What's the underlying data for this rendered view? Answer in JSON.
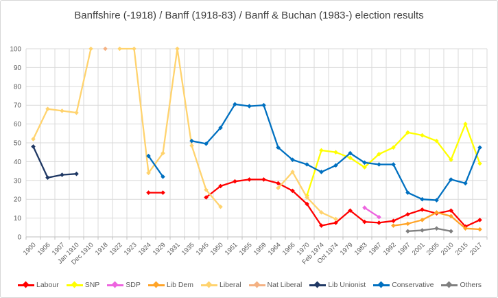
{
  "chart_data": {
    "type": "line",
    "title": "Banffshire (-1918) / Banff (1918-83) / Banff & Buchan (1983-) election results",
    "xlabel": "",
    "ylabel": "",
    "ylim": [
      0,
      100
    ],
    "yticks": [
      0,
      10,
      20,
      30,
      40,
      50,
      60,
      70,
      80,
      90,
      100
    ],
    "grid": true,
    "legend_position": "bottom",
    "xlabel_rotation": 45,
    "grid_color": "#d9d9d9",
    "axis_line_color": "#bfbfbf",
    "axis_text_color": "#595959",
    "title_color": "#404040",
    "categories": [
      "1900",
      "1906",
      "1907",
      "Jan 1910",
      "Dec 1910",
      "1918",
      "1922",
      "1923",
      "1924",
      "1929",
      "1931",
      "1935",
      "1945",
      "1950",
      "1951",
      "1955",
      "1959",
      "1964",
      "1966",
      "1970",
      "Feb 1974",
      "Oct 1974",
      "1979",
      "1983",
      "1987",
      "1992",
      "1997",
      "2001",
      "2005",
      "2010",
      "2015",
      "2017"
    ],
    "series": [
      {
        "name": "Labour",
        "color": "#ff0000",
        "values": [
          null,
          null,
          null,
          null,
          null,
          null,
          null,
          null,
          23.5,
          23.5,
          null,
          null,
          21,
          27,
          29.5,
          30.5,
          30.5,
          28.5,
          24.5,
          17.5,
          6,
          7.5,
          14,
          8,
          7.5,
          8.5,
          12,
          14.5,
          12.5,
          14,
          5.5,
          9
        ]
      },
      {
        "name": "SNP",
        "color": "#ffff00",
        "values": [
          null,
          null,
          null,
          null,
          null,
          null,
          null,
          null,
          null,
          null,
          null,
          null,
          null,
          null,
          null,
          null,
          null,
          null,
          null,
          22,
          46,
          45,
          42,
          37,
          44,
          47.5,
          55.5,
          54,
          51,
          41,
          60,
          39
        ]
      },
      {
        "name": "SDP",
        "color": "#ed64df",
        "values": [
          null,
          null,
          null,
          null,
          null,
          null,
          null,
          null,
          null,
          null,
          null,
          null,
          null,
          null,
          null,
          null,
          null,
          null,
          null,
          null,
          null,
          null,
          null,
          15.5,
          10.5,
          null,
          null,
          null,
          null,
          null,
          null,
          null
        ]
      },
      {
        "name": "Lib Dem",
        "color": "#ffa428",
        "values": [
          null,
          null,
          null,
          null,
          null,
          null,
          null,
          null,
          null,
          null,
          null,
          null,
          null,
          null,
          null,
          null,
          null,
          null,
          null,
          null,
          null,
          null,
          null,
          null,
          null,
          6,
          7,
          9,
          13,
          11,
          4.5,
          4
        ]
      },
      {
        "name": "Liberal",
        "color": "#ffd36e",
        "values": [
          52,
          68,
          67,
          66,
          100,
          null,
          100,
          100,
          34,
          44.5,
          100,
          48.5,
          25,
          16,
          null,
          null,
          null,
          26,
          34.5,
          21,
          13,
          9.5,
          null,
          null,
          null,
          null,
          null,
          null,
          null,
          null,
          null,
          null
        ]
      },
      {
        "name": "Nat Liberal",
        "color": "#f4b183",
        "values": [
          null,
          null,
          null,
          null,
          null,
          100,
          null,
          null,
          null,
          null,
          null,
          null,
          null,
          null,
          null,
          null,
          null,
          null,
          null,
          null,
          null,
          null,
          null,
          null,
          null,
          null,
          null,
          null,
          null,
          null,
          null,
          null
        ]
      },
      {
        "name": "Lib Unionist",
        "color": "#1f3864",
        "values": [
          48,
          31.5,
          33,
          33.5,
          null,
          null,
          null,
          null,
          null,
          null,
          null,
          null,
          null,
          null,
          null,
          null,
          null,
          null,
          null,
          null,
          null,
          null,
          null,
          null,
          null,
          null,
          null,
          null,
          null,
          null,
          null,
          null
        ]
      },
      {
        "name": "Conservative",
        "color": "#0070c0",
        "values": [
          null,
          null,
          null,
          null,
          null,
          null,
          null,
          null,
          43,
          32,
          null,
          51,
          49.5,
          58,
          70.5,
          69.5,
          70,
          47.5,
          41,
          38.5,
          34.5,
          38,
          44.5,
          39.5,
          38.5,
          38.5,
          23.5,
          20,
          19.5,
          30.5,
          28.5,
          47.5
        ]
      },
      {
        "name": "Others",
        "color": "#7f7f7f",
        "values": [
          null,
          null,
          null,
          null,
          null,
          null,
          null,
          null,
          null,
          null,
          null,
          null,
          null,
          null,
          null,
          null,
          null,
          null,
          null,
          null,
          null,
          null,
          null,
          null,
          null,
          null,
          3,
          3.5,
          4.5,
          3,
          null,
          null
        ]
      }
    ]
  }
}
